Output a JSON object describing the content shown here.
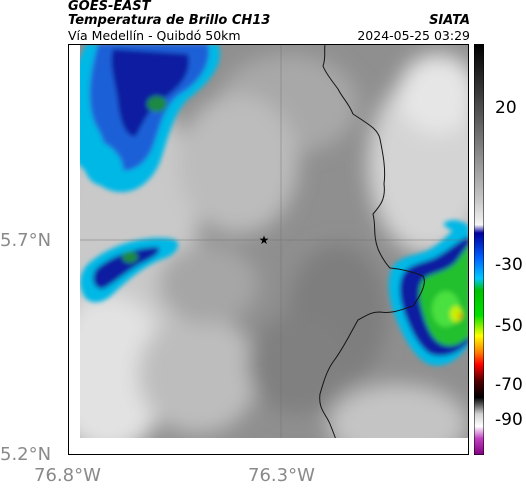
{
  "header": {
    "satellite": "GOES-EAST",
    "product": "Temperatura de Brillo CH13",
    "agency": "SIATA",
    "subtitle": "Vía Medellín - Quibdó 50km",
    "timestamp": "2024-05-25 03:29"
  },
  "map": {
    "lat_ticks": [
      "5.7°N",
      "5.2°N"
    ],
    "lon_ticks": [
      "76.8°W",
      "76.3°W"
    ],
    "marker": "star-marker",
    "colors": {
      "cold_cloud_blue": "#0a1fa0",
      "cyan": "#00c8e8",
      "green": "#28d028",
      "gray": "#8e8e8e",
      "border_line": "#1a1a1a"
    }
  },
  "colorbar": {
    "ticks": [
      "20",
      "-30",
      "-50",
      "-70",
      "-90"
    ],
    "colors": [
      "#000000",
      "#ffffff",
      "#0000a0",
      "#00c8ff",
      "#00c000",
      "#ffff00",
      "#ff0000",
      "#800080"
    ]
  }
}
